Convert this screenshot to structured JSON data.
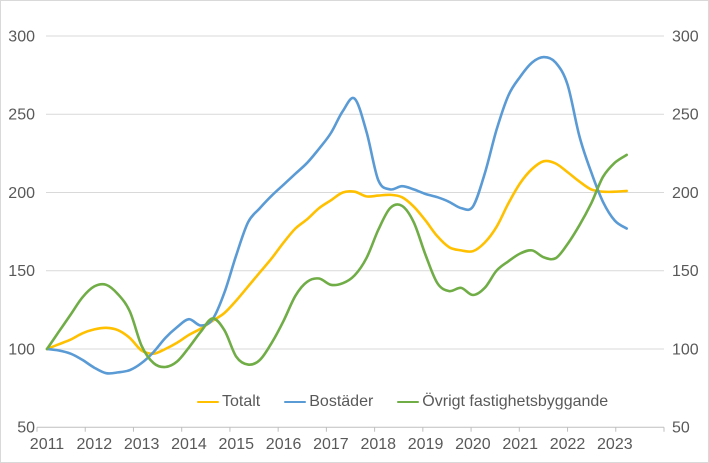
{
  "chart_data": {
    "type": "line",
    "title": "",
    "grid": "horizontal",
    "legend_position": "bottom-center",
    "ylim": [
      50,
      300
    ],
    "y_ticks": [
      50,
      100,
      150,
      200,
      250,
      300
    ],
    "y_axis_sides": "both",
    "x_tick_labels": [
      "2011",
      "2012",
      "2013",
      "2014",
      "2015",
      "2016",
      "2017",
      "2018",
      "2019",
      "2020",
      "2021",
      "2022",
      "2023"
    ],
    "points_per_year": 4,
    "x_range_points": [
      "2011 Q1",
      "2023 Q2"
    ],
    "series": [
      {
        "id": "totalt",
        "name": "Totalt",
        "color": "#FFC000",
        "values": [
          100,
          103,
          106,
          110,
          112.5,
          113.5,
          112,
          107,
          99,
          97,
          100,
          104,
          109,
          113,
          118,
          123,
          131,
          140,
          149,
          158,
          168,
          177,
          183,
          190,
          195,
          200,
          200.5,
          197.5,
          198,
          198.5,
          197,
          191,
          182,
          172,
          165,
          163,
          162.5,
          168,
          178,
          193,
          206,
          215,
          220,
          218.5,
          213,
          207,
          202,
          200.5,
          200.5,
          201
        ]
      },
      {
        "id": "bostader",
        "name": "Bostäder",
        "color": "#5B9BD5",
        "values": [
          100,
          99,
          97,
          93,
          88,
          84.5,
          85,
          86.5,
          91,
          98,
          107,
          114,
          119,
          115,
          119,
          136,
          160,
          181,
          190,
          198,
          205,
          212,
          219,
          228,
          238,
          252,
          260,
          239,
          208,
          202,
          204,
          202,
          199,
          197,
          194,
          190,
          191,
          212,
          240,
          262,
          274,
          283,
          286.5,
          283,
          269,
          236,
          213,
          194,
          182,
          177
        ]
      },
      {
        "id": "ovrigt-fastighetsbyggande",
        "name": "Övrigt fastighetsbyggande",
        "color": "#70AD47",
        "values": [
          100,
          111,
          122,
          133,
          140,
          141,
          135,
          124,
          102,
          91,
          88.5,
          92,
          101,
          111,
          119.5,
          112,
          95,
          90,
          93,
          104,
          118,
          134,
          143,
          145,
          141,
          142,
          147,
          158,
          176,
          190,
          191.5,
          181,
          160,
          142,
          137,
          139,
          134.5,
          139,
          150,
          156,
          161,
          163,
          158.5,
          158,
          167,
          179,
          193,
          210,
          219,
          224
        ]
      }
    ]
  },
  "colors": {
    "background": "#FFFFFF",
    "border": "#D9D9D9",
    "gridline": "#D9D9D9",
    "axis_line": "#BFBFBF",
    "tick_label": "#595959",
    "legend_text": "#595959"
  }
}
